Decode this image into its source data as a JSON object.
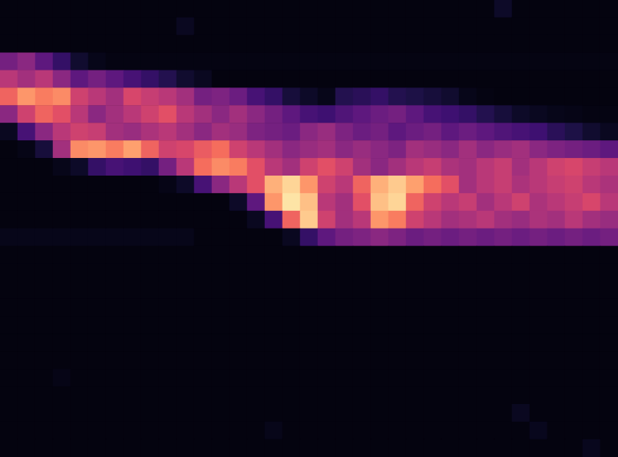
{
  "chart_data": {
    "type": "heatmap",
    "grid": false,
    "tick_labels": false,
    "zlim": [
      0,
      100
    ],
    "cells": [
      [
        3,
        3,
        3,
        3,
        3,
        3,
        3,
        3,
        3,
        3,
        3,
        3,
        3,
        3,
        3,
        3,
        3,
        3,
        3,
        3,
        3,
        3,
        3,
        3,
        3,
        3,
        3,
        3,
        10,
        3,
        3,
        3,
        3,
        3,
        3
      ],
      [
        3,
        3,
        3,
        3,
        3,
        3,
        3,
        3,
        3,
        3,
        8,
        3,
        3,
        3,
        3,
        3,
        3,
        3,
        3,
        3,
        3,
        3,
        3,
        3,
        3,
        3,
        3,
        3,
        3,
        3,
        3,
        3,
        3,
        3,
        3
      ],
      [
        3,
        3,
        3,
        3,
        3,
        3,
        3,
        3,
        3,
        3,
        3,
        3,
        3,
        3,
        3,
        3,
        3,
        3,
        3,
        3,
        3,
        3,
        3,
        3,
        3,
        3,
        3,
        3,
        3,
        3,
        3,
        3,
        3,
        3,
        3
      ],
      [
        40,
        45,
        35,
        25,
        12,
        6,
        4,
        4,
        4,
        4,
        4,
        4,
        4,
        4,
        4,
        4,
        4,
        4,
        4,
        4,
        4,
        4,
        4,
        4,
        4,
        4,
        4,
        4,
        4,
        4,
        4,
        4,
        4,
        4,
        4
      ],
      [
        55,
        50,
        55,
        45,
        35,
        40,
        35,
        30,
        25,
        20,
        12,
        8,
        3,
        3,
        3,
        3,
        3,
        3,
        3,
        3,
        3,
        3,
        3,
        3,
        3,
        3,
        3,
        3,
        3,
        3,
        3,
        3,
        3,
        3,
        3
      ],
      [
        70,
        80,
        75,
        78,
        60,
        55,
        50,
        62,
        58,
        55,
        50,
        40,
        42,
        38,
        30,
        25,
        15,
        10,
        6,
        20,
        22,
        25,
        20,
        18,
        15,
        12,
        6,
        4,
        3,
        3,
        3,
        3,
        3,
        3,
        3
      ],
      [
        45,
        60,
        70,
        65,
        55,
        45,
        50,
        55,
        60,
        65,
        55,
        50,
        45,
        50,
        45,
        40,
        35,
        30,
        28,
        32,
        35,
        38,
        40,
        35,
        30,
        28,
        25,
        20,
        15,
        10,
        8,
        6,
        5,
        4,
        4
      ],
      [
        8,
        30,
        45,
        55,
        60,
        58,
        50,
        48,
        52,
        55,
        50,
        45,
        50,
        48,
        42,
        40,
        38,
        45,
        48,
        42,
        38,
        40,
        35,
        38,
        40,
        35,
        38,
        35,
        32,
        30,
        28,
        22,
        18,
        12,
        8
      ],
      [
        3,
        5,
        15,
        50,
        78,
        80,
        75,
        82,
        70,
        60,
        62,
        68,
        72,
        60,
        55,
        50,
        45,
        48,
        50,
        45,
        48,
        45,
        42,
        50,
        48,
        45,
        50,
        45,
        48,
        50,
        45,
        42,
        40,
        38,
        35
      ],
      [
        3,
        3,
        3,
        6,
        10,
        25,
        30,
        28,
        25,
        40,
        55,
        72,
        78,
        75,
        65,
        55,
        50,
        60,
        65,
        60,
        50,
        45,
        50,
        55,
        58,
        52,
        50,
        55,
        58,
        50,
        55,
        60,
        62,
        58,
        55
      ],
      [
        3,
        3,
        3,
        3,
        3,
        3,
        3,
        3,
        3,
        5,
        10,
        30,
        45,
        55,
        65,
        85,
        92,
        80,
        60,
        55,
        70,
        85,
        90,
        82,
        72,
        65,
        50,
        55,
        58,
        52,
        55,
        58,
        60,
        55,
        52
      ],
      [
        3,
        3,
        3,
        3,
        3,
        3,
        3,
        3,
        3,
        3,
        3,
        3,
        3,
        10,
        35,
        80,
        95,
        88,
        55,
        50,
        65,
        88,
        92,
        70,
        60,
        55,
        58,
        50,
        55,
        60,
        52,
        55,
        58,
        62,
        55
      ],
      [
        3,
        3,
        3,
        3,
        3,
        3,
        3,
        3,
        3,
        3,
        3,
        3,
        3,
        3,
        8,
        30,
        70,
        90,
        60,
        50,
        55,
        80,
        75,
        60,
        55,
        50,
        52,
        55,
        50,
        48,
        52,
        50,
        55,
        50,
        48
      ],
      [
        6,
        6,
        6,
        6,
        6,
        6,
        6,
        6,
        6,
        6,
        6,
        3,
        3,
        3,
        3,
        3,
        8,
        25,
        35,
        40,
        42,
        45,
        42,
        38,
        40,
        38,
        40,
        38,
        40,
        38,
        40,
        38,
        40,
        38,
        40
      ],
      [
        3,
        3,
        3,
        3,
        3,
        3,
        3,
        3,
        3,
        3,
        3,
        3,
        3,
        3,
        3,
        3,
        3,
        3,
        3,
        3,
        3,
        3,
        3,
        3,
        3,
        3,
        3,
        3,
        3,
        3,
        3,
        3,
        3,
        3,
        3
      ],
      [
        3,
        3,
        3,
        3,
        3,
        3,
        3,
        3,
        3,
        3,
        3,
        3,
        3,
        3,
        3,
        3,
        3,
        3,
        3,
        3,
        3,
        3,
        3,
        3,
        3,
        3,
        3,
        3,
        3,
        3,
        3,
        3,
        3,
        3,
        3
      ],
      [
        3,
        3,
        3,
        3,
        3,
        3,
        3,
        3,
        3,
        3,
        3,
        3,
        3,
        3,
        3,
        3,
        3,
        3,
        3,
        3,
        3,
        3,
        3,
        3,
        3,
        3,
        3,
        3,
        3,
        3,
        3,
        3,
        3,
        3,
        3
      ],
      [
        3,
        3,
        3,
        3,
        3,
        3,
        3,
        3,
        3,
        3,
        3,
        3,
        3,
        3,
        3,
        3,
        3,
        3,
        3,
        3,
        3,
        3,
        3,
        3,
        3,
        3,
        3,
        3,
        3,
        3,
        3,
        3,
        3,
        3,
        3
      ],
      [
        3,
        3,
        3,
        3,
        3,
        3,
        3,
        3,
        3,
        3,
        3,
        3,
        3,
        3,
        3,
        3,
        3,
        3,
        3,
        3,
        3,
        3,
        3,
        3,
        3,
        3,
        3,
        3,
        3,
        3,
        3,
        3,
        3,
        3,
        3
      ],
      [
        3,
        3,
        3,
        3,
        3,
        3,
        3,
        3,
        3,
        3,
        3,
        3,
        3,
        3,
        3,
        3,
        3,
        3,
        3,
        3,
        3,
        3,
        3,
        3,
        3,
        3,
        3,
        3,
        3,
        3,
        3,
        3,
        3,
        3,
        3
      ],
      [
        3,
        3,
        3,
        3,
        3,
        3,
        3,
        3,
        3,
        3,
        3,
        3,
        3,
        3,
        3,
        3,
        3,
        3,
        3,
        3,
        3,
        3,
        3,
        3,
        3,
        3,
        3,
        3,
        3,
        3,
        3,
        3,
        3,
        3,
        3
      ],
      [
        3,
        3,
        3,
        5,
        3,
        3,
        3,
        3,
        3,
        3,
        3,
        3,
        3,
        3,
        3,
        3,
        3,
        3,
        3,
        3,
        3,
        3,
        3,
        3,
        3,
        3,
        3,
        3,
        3,
        3,
        3,
        3,
        3,
        3,
        3
      ],
      [
        3,
        3,
        3,
        3,
        3,
        3,
        3,
        3,
        3,
        3,
        3,
        3,
        3,
        3,
        3,
        3,
        3,
        3,
        3,
        3,
        3,
        3,
        3,
        3,
        3,
        3,
        3,
        3,
        3,
        3,
        3,
        3,
        3,
        3,
        3
      ],
      [
        3,
        3,
        3,
        3,
        3,
        3,
        3,
        3,
        3,
        3,
        3,
        3,
        3,
        3,
        3,
        3,
        3,
        3,
        3,
        3,
        3,
        3,
        3,
        3,
        3,
        3,
        3,
        3,
        3,
        8,
        3,
        3,
        3,
        3,
        3
      ],
      [
        3,
        3,
        3,
        3,
        3,
        3,
        3,
        3,
        3,
        3,
        3,
        3,
        3,
        3,
        3,
        6,
        3,
        3,
        3,
        3,
        3,
        3,
        3,
        3,
        3,
        3,
        3,
        3,
        3,
        3,
        7,
        3,
        3,
        3,
        3
      ],
      [
        3,
        3,
        3,
        3,
        3,
        3,
        3,
        3,
        3,
        3,
        3,
        3,
        3,
        3,
        3,
        3,
        3,
        3,
        3,
        3,
        3,
        3,
        3,
        3,
        3,
        3,
        3,
        3,
        3,
        3,
        3,
        3,
        3,
        7,
        3
      ]
    ]
  }
}
